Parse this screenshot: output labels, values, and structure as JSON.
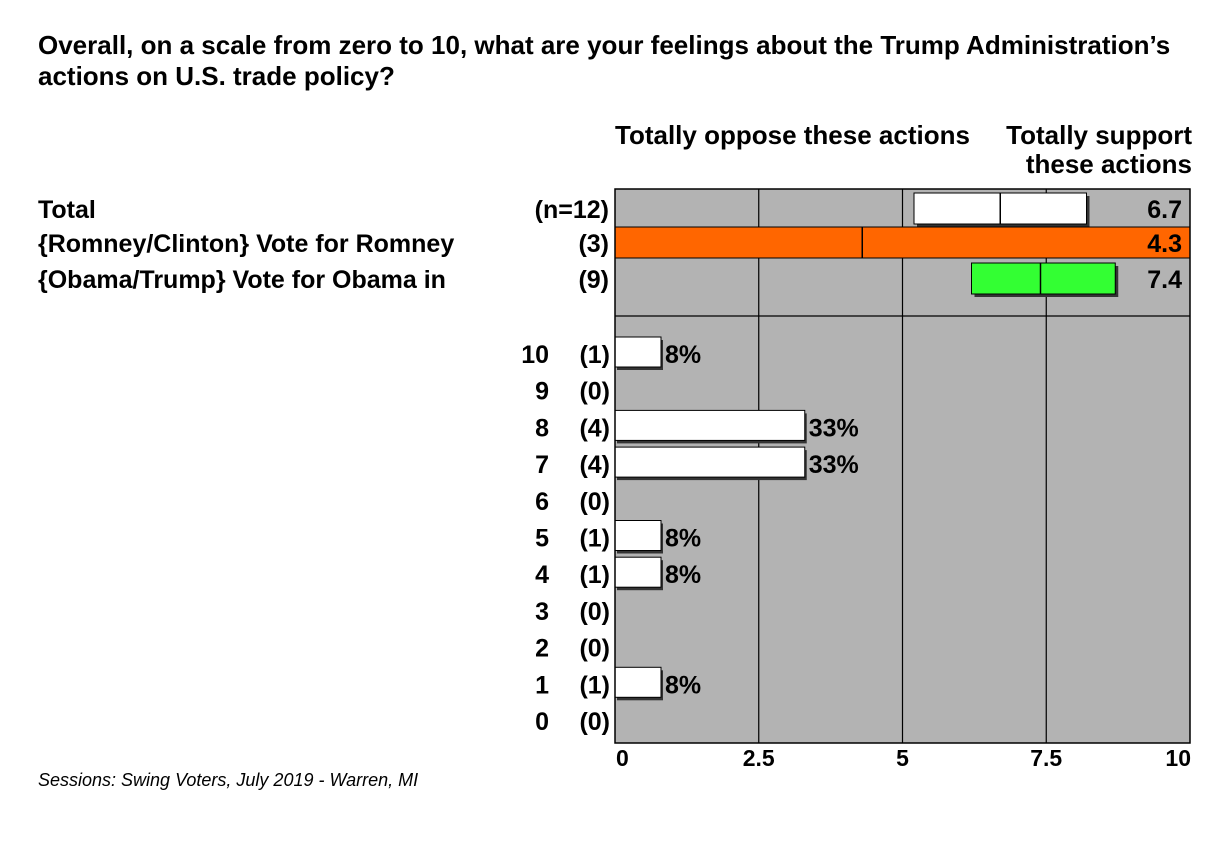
{
  "title": "Overall, on a scale from zero to 10, what are your feelings about the Trump Administration’s actions on U.S. trade policy?",
  "source": "Sessions: Swing Voters, July 2019 - Warren, MI",
  "colors": {
    "plot_background": "#b3b3b3",
    "total_bar": "#ffffff",
    "romney_bar": "#ff6600",
    "obama_bar": "#33ff33",
    "distribution_bar": "#ffffff"
  },
  "chart_data": [
    {
      "type": "bar",
      "orientation": "horizontal",
      "subtype": "mean-with-range",
      "scale_left_label": "Totally oppose these actions",
      "scale_right_label": "Totally support these actions",
      "xlim": [
        0,
        10
      ],
      "x_ticks": [
        "0",
        "2.5",
        "5",
        "7.5",
        "10"
      ],
      "grid": true,
      "groups": [
        {
          "label": "Total",
          "n": "(n=12)",
          "mean": 6.7,
          "mean_label": "6.7",
          "range": [
            5.2,
            8.2
          ],
          "color": "#ffffff"
        },
        {
          "label": "{Romney/Clinton} Vote for Romney",
          "n": "(3)",
          "mean": 4.3,
          "mean_label": "4.3",
          "range": [
            0,
            10
          ],
          "color": "#ff6600"
        },
        {
          "label": "{Obama/Trump} Vote for Obama in",
          "n": "(9)",
          "mean": 7.4,
          "mean_label": "7.4",
          "range": [
            6.2,
            8.7
          ],
          "color": "#33ff33"
        }
      ]
    },
    {
      "type": "bar",
      "orientation": "horizontal",
      "categories": [
        "10",
        "9",
        "8",
        "7",
        "6",
        "5",
        "4",
        "3",
        "2",
        "1",
        "0"
      ],
      "counts": [
        "(1)",
        "(0)",
        "(4)",
        "(4)",
        "(0)",
        "(1)",
        "(1)",
        "(0)",
        "(0)",
        "(1)",
        "(0)"
      ],
      "values": [
        8,
        0,
        33,
        33,
        0,
        8,
        8,
        0,
        0,
        8,
        0
      ],
      "value_labels": [
        "8%",
        "",
        "33%",
        "33%",
        "",
        "8%",
        "8%",
        "",
        "",
        "8%",
        ""
      ],
      "unit": "%",
      "xlim_percent": [
        0,
        100
      ]
    }
  ]
}
